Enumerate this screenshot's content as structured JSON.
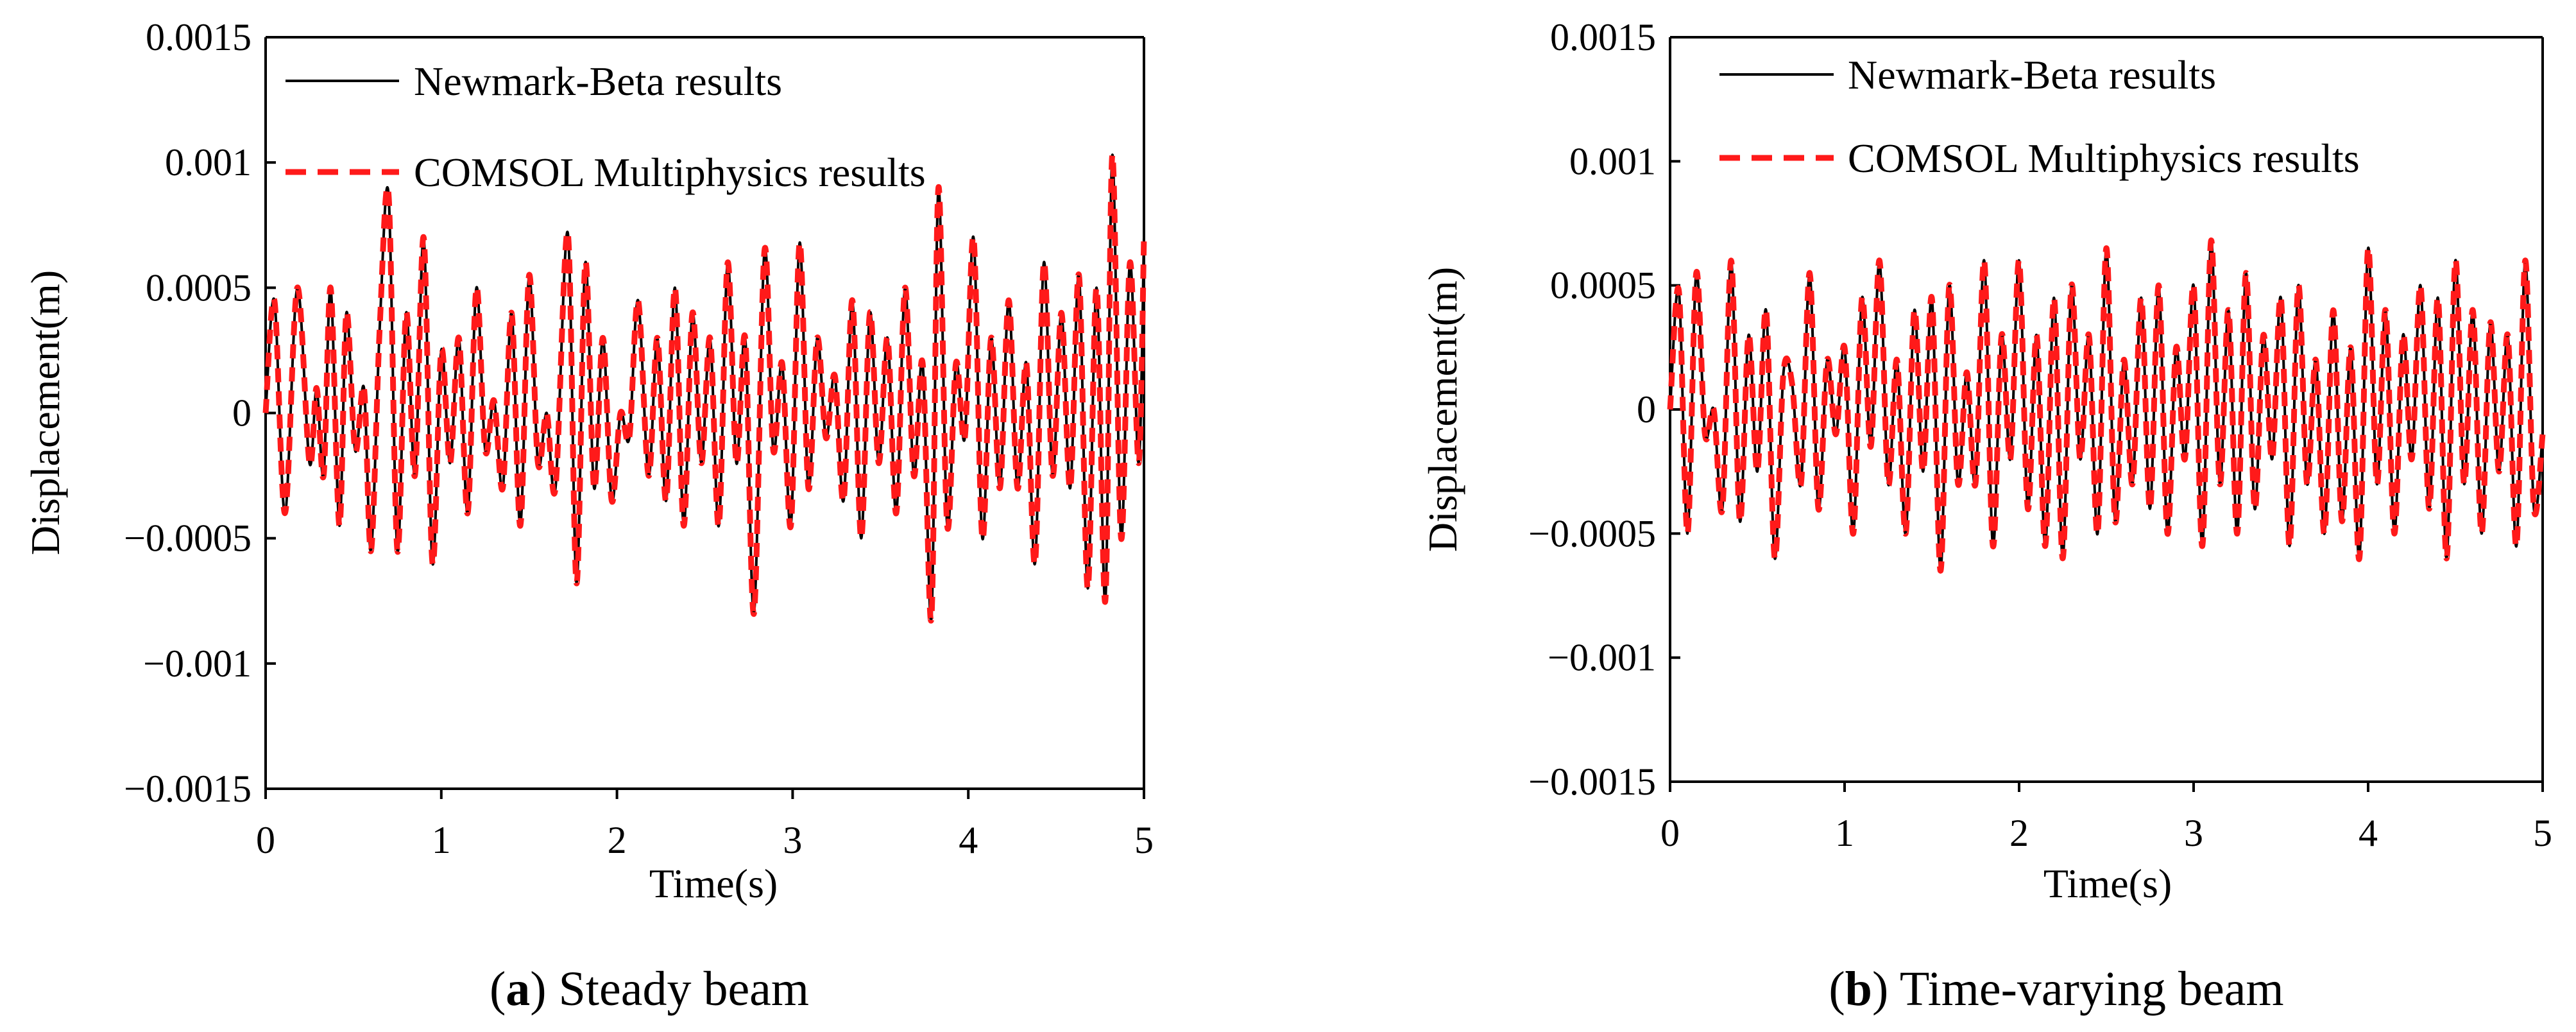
{
  "chart_data": [
    {
      "type": "line",
      "panel_letter": "a",
      "caption": "Steady beam",
      "xlabel": "Time(s)",
      "ylabel": "Displacement(m)",
      "xlim": [
        0,
        5
      ],
      "ylim": [
        -0.0015,
        0.0015
      ],
      "x_ticks": [
        0,
        1,
        2,
        3,
        4,
        5
      ],
      "x_tick_labels": [
        "0",
        "1",
        "2",
        "3",
        "4",
        "5"
      ],
      "y_ticks": [
        -0.0015,
        -0.001,
        -0.0005,
        0,
        0.0005,
        0.001,
        0.0015
      ],
      "y_tick_labels": [
        "−0.0015",
        "−0.001",
        "−0.0005",
        "0",
        "0.0005",
        "0.001",
        "0.0015"
      ],
      "grid": false,
      "legend_position": "top-left",
      "series": [
        {
          "name": "Newmark-Beta results",
          "color": "#000000",
          "style": "solid"
        },
        {
          "name": "COMSOL Multiphysics results",
          "color": "#ff1a1a",
          "style": "dashed"
        }
      ],
      "x": [
        0,
        0.05,
        0.11,
        0.18,
        0.25,
        0.29,
        0.33,
        0.37,
        0.42,
        0.46,
        0.51,
        0.56,
        0.6,
        0.65,
        0.7,
        0.75,
        0.8,
        0.85,
        0.9,
        0.95,
        1.0,
        1.05,
        1.1,
        1.15,
        1.2,
        1.25,
        1.3,
        1.35,
        1.4,
        1.45,
        1.5,
        1.55,
        1.6,
        1.65,
        1.72,
        1.77,
        1.82,
        1.87,
        1.92,
        1.97,
        2.02,
        2.07,
        2.12,
        2.18,
        2.23,
        2.28,
        2.33,
        2.38,
        2.43,
        2.48,
        2.53,
        2.58,
        2.63,
        2.68,
        2.73,
        2.78,
        2.84,
        2.89,
        2.94,
        2.99,
        3.04,
        3.09,
        3.14,
        3.19,
        3.24,
        3.29,
        3.34,
        3.39,
        3.44,
        3.49,
        3.54,
        3.59,
        3.64,
        3.69,
        3.74,
        3.79,
        3.83,
        3.88,
        3.93,
        3.98,
        4.03,
        4.08,
        4.13,
        4.18,
        4.23,
        4.28,
        4.33,
        4.38,
        4.43,
        4.48,
        4.53,
        4.58,
        4.63,
        4.68,
        4.73,
        4.78,
        4.82,
        4.87,
        4.92,
        4.97,
        5.0
      ],
      "values": [
        0.0,
        0.00045,
        -0.0004,
        0.0005,
        -0.0002,
        0.0001,
        -0.00025,
        0.0005,
        -0.00045,
        0.0004,
        -0.00015,
        0.0001,
        -0.00055,
        0.00035,
        0.00087,
        -0.00055,
        0.0004,
        -0.00025,
        0.0007,
        -0.0006,
        0.00025,
        -0.0002,
        0.0003,
        -0.0004,
        0.0005,
        -0.00015,
        5e-05,
        -0.0003,
        0.0004,
        -0.00045,
        0.00055,
        -0.0002,
        0.0,
        -0.0003,
        0.00072,
        -0.00068,
        0.0006,
        -0.0003,
        0.0003,
        -0.00035,
        0.0,
        -0.0001,
        0.00045,
        -0.00025,
        0.0003,
        -0.00035,
        0.0005,
        -0.00045,
        0.0004,
        -0.0002,
        0.0003,
        -0.00045,
        0.0006,
        -0.0002,
        0.0003,
        -0.0008,
        0.00065,
        -0.00015,
        0.0002,
        -0.00045,
        0.00068,
        -0.0003,
        0.0003,
        -0.0001,
        0.00015,
        -0.00035,
        0.00045,
        -0.0005,
        0.0004,
        -0.0002,
        0.0003,
        -0.0004,
        0.0005,
        -0.00025,
        0.0002,
        -0.00082,
        0.0009,
        -0.00045,
        0.0002,
        -0.0001,
        0.0007,
        -0.0005,
        0.0003,
        -0.0003,
        0.00045,
        -0.0003,
        0.0002,
        -0.0006,
        0.0006,
        -0.00025,
        0.0004,
        -0.0003,
        0.00055,
        -0.0007,
        0.0005,
        -0.00075,
        0.00103,
        -0.0005,
        0.0006,
        -0.0002,
        0.0007
      ]
    },
    {
      "type": "line",
      "panel_letter": "b",
      "caption": "Time-varying beam",
      "xlabel": "Time(s)",
      "ylabel": "Displacement(m)",
      "xlim": [
        0,
        5
      ],
      "ylim": [
        -0.0015,
        0.0015
      ],
      "x_ticks": [
        0,
        1,
        2,
        3,
        4,
        5
      ],
      "x_tick_labels": [
        "0",
        "1",
        "2",
        "3",
        "4",
        "5"
      ],
      "y_ticks": [
        -0.0015,
        -0.001,
        -0.0005,
        0,
        0.0005,
        0.001,
        0.0015
      ],
      "y_tick_labels": [
        "−0.0015",
        "−0.001",
        "−0.0005",
        "0",
        "0.0005",
        "0.001",
        "0.0015"
      ],
      "grid": false,
      "legend_position": "top-left",
      "series": [
        {
          "name": "Newmark-Beta results",
          "color": "#000000",
          "style": "solid"
        },
        {
          "name": "COMSOL Multiphysics results",
          "color": "#ff1a1a",
          "style": "dashed"
        }
      ],
      "x": [
        0,
        0.05,
        0.1,
        0.15,
        0.2,
        0.25,
        0.3,
        0.35,
        0.4,
        0.45,
        0.5,
        0.55,
        0.6,
        0.65,
        0.7,
        0.75,
        0.8,
        0.85,
        0.9,
        0.95,
        1.0,
        1.05,
        1.1,
        1.15,
        1.2,
        1.25,
        1.3,
        1.35,
        1.4,
        1.45,
        1.5,
        1.55,
        1.6,
        1.65,
        1.7,
        1.75,
        1.8,
        1.85,
        1.9,
        1.95,
        2.0,
        2.05,
        2.1,
        2.15,
        2.2,
        2.25,
        2.3,
        2.35,
        2.4,
        2.45,
        2.5,
        2.55,
        2.6,
        2.65,
        2.7,
        2.75,
        2.8,
        2.85,
        2.9,
        2.95,
        3.0,
        3.05,
        3.1,
        3.15,
        3.2,
        3.25,
        3.3,
        3.35,
        3.4,
        3.45,
        3.5,
        3.55,
        3.6,
        3.65,
        3.7,
        3.75,
        3.8,
        3.85,
        3.9,
        3.95,
        4.0,
        4.05,
        4.1,
        4.15,
        4.2,
        4.25,
        4.3,
        4.35,
        4.4,
        4.45,
        4.5,
        4.55,
        4.6,
        4.65,
        4.7,
        4.75,
        4.8,
        4.85,
        4.9,
        4.95,
        5.0
      ],
      "values": [
        0.0,
        0.00048,
        -0.0005,
        0.00055,
        -0.0001,
        0.0,
        -0.0004,
        0.0006,
        -0.00045,
        0.0003,
        -0.00025,
        0.0004,
        -0.0006,
        0.00015,
        0.0001,
        -0.0003,
        0.00055,
        -0.0004,
        0.0002,
        -0.0001,
        0.00025,
        -0.0005,
        0.00045,
        -0.00015,
        0.0006,
        -0.0003,
        0.0002,
        -0.0005,
        0.0004,
        -0.00025,
        0.00045,
        -0.00065,
        0.0005,
        -0.0003,
        0.00015,
        -0.0003,
        0.0006,
        -0.00055,
        0.0003,
        -0.0002,
        0.0006,
        -0.0004,
        0.0003,
        -0.00055,
        0.00045,
        -0.0006,
        0.0005,
        -0.0002,
        0.0003,
        -0.0005,
        0.00065,
        -0.00045,
        0.0002,
        -0.0003,
        0.00045,
        -0.0004,
        0.0005,
        -0.0005,
        0.00025,
        -0.0002,
        0.0005,
        -0.00055,
        0.00068,
        -0.0003,
        0.0004,
        -0.0005,
        0.00055,
        -0.0004,
        0.0003,
        -0.0002,
        0.00045,
        -0.00055,
        0.0005,
        -0.0003,
        0.0002,
        -0.0005,
        0.0004,
        -0.00045,
        0.00025,
        -0.0006,
        0.00065,
        -0.0003,
        0.0004,
        -0.0005,
        0.0003,
        -0.0002,
        0.0005,
        -0.0004,
        0.00045,
        -0.0006,
        0.0006,
        -0.0003,
        0.0004,
        -0.0005,
        0.00035,
        -0.00025,
        0.0003,
        -0.00055,
        0.0006,
        -0.0004,
        -0.0001
      ]
    }
  ]
}
